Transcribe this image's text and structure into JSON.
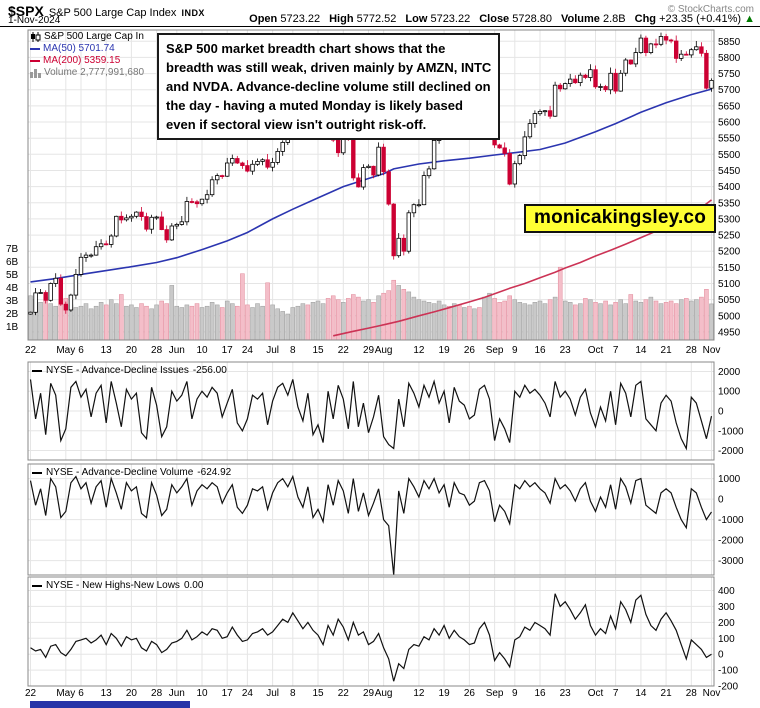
{
  "header": {
    "symbol": "$SPX",
    "name": "S&P 500 Large Cap Index",
    "exchange": "INDX",
    "source": "© StockCharts.com",
    "date": "1-Nov-2024",
    "quote": {
      "open_label": "Open",
      "open": "5723.22",
      "high_label": "High",
      "high": "5772.52",
      "low_label": "Low",
      "low": "5723.22",
      "close_label": "Close",
      "close": "5728.80",
      "volume_label": "Volume",
      "volume": "2.8B",
      "chg_label": "Chg",
      "chg": "+23.35 (+0.41%)",
      "chg_arrow": "▲"
    }
  },
  "main_legend": {
    "title": "S&P 500 Large Cap In",
    "ma50": "MA(50) 5701.74",
    "ma200": "MA(200) 5359.15",
    "volume": "Volume 2,777,991,680"
  },
  "annotation": {
    "lines": [
      "S&P 500 market breadth chart shows that the",
      "breadth was still weak, driven mainly by AMZN, INTC",
      "and NVDA. Advance-decline volume still declined on",
      "the day - having a muted Monday is likely based",
      "even if sectoral view isn't outright risk-off."
    ]
  },
  "watermark": "monicakingsley.co",
  "colors": {
    "up_fill": "#ffffff",
    "up_stroke": "#000000",
    "down": "#cc0033",
    "ma50": "#2b35b0",
    "ma200": "#cc3355",
    "vol_up": "#c9c9c9",
    "vol_up_edge": "#9a9a9a",
    "vol_down": "#f4bec9",
    "vol_down_edge": "#e08898",
    "badge_bg": "#ffff33",
    "chg_up": "#007a00",
    "panel_line": "#111111"
  },
  "chart_data": [
    {
      "type": "candlestick+volume",
      "title": "S&P 500 Large Cap Index",
      "date_range": "Apr 22 2024 - Nov 1 2024",
      "price_axis_range": [
        4925,
        5885
      ],
      "y_ticks": [
        5850,
        5800,
        5750,
        5700,
        5650,
        5600,
        5550,
        5500,
        5450,
        5400,
        5350,
        5300,
        5250,
        5200,
        5150,
        5100,
        5050,
        5000,
        4950
      ],
      "volume_ticks": [
        "1B",
        "2B",
        "3B",
        "4B",
        "5B",
        "6B",
        "7B"
      ],
      "x_tick_idx": [
        0,
        7,
        10,
        15,
        20,
        25,
        29,
        34,
        39,
        43,
        48,
        52,
        57,
        62,
        67,
        70,
        77,
        82,
        87,
        92,
        96,
        101,
        106,
        112,
        116,
        121,
        126,
        131,
        135
      ],
      "x_tick_labels": [
        "22",
        "May",
        "6",
        "13",
        "20",
        "28",
        "Jun",
        "10",
        "17",
        "24",
        "Jul",
        "8",
        "15",
        "22",
        "29",
        "Aug",
        "12",
        "19",
        "26",
        "Sep",
        "9",
        "16",
        "23",
        "Oct",
        "7",
        "14",
        "21",
        "28",
        "Nov"
      ],
      "open_first": 5005,
      "closes": [
        5011,
        5071,
        5072,
        5048,
        5100,
        5116,
        5036,
        5018,
        5064,
        5128,
        5181,
        5188,
        5188,
        5214,
        5223,
        5221,
        5247,
        5308,
        5297,
        5303,
        5308,
        5321,
        5307,
        5268,
        5305,
        5306,
        5267,
        5235,
        5278,
        5283,
        5291,
        5354,
        5353,
        5347,
        5361,
        5375,
        5421,
        5434,
        5432,
        5473,
        5487,
        5473,
        5465,
        5448,
        5469,
        5478,
        5483,
        5460,
        5475,
        5509,
        5537,
        5567,
        5573,
        5577,
        5634,
        5584,
        5615,
        5631,
        5667,
        5588,
        5544,
        5505,
        5564,
        5556,
        5427,
        5399,
        5459,
        5463,
        5436,
        5522,
        5446,
        5346,
        5186,
        5240,
        5200,
        5319,
        5344,
        5344,
        5434,
        5455,
        5543,
        5554,
        5608,
        5597,
        5621,
        5571,
        5635,
        5617,
        5626,
        5592,
        5592,
        5648,
        5529,
        5520,
        5503,
        5408,
        5471,
        5496,
        5554,
        5595,
        5626,
        5633,
        5635,
        5618,
        5714,
        5703,
        5719,
        5733,
        5722,
        5745,
        5738,
        5762,
        5709,
        5710,
        5700,
        5751,
        5696,
        5751,
        5792,
        5780,
        5815,
        5860,
        5815,
        5842,
        5841,
        5865,
        5854,
        5851,
        5797,
        5810,
        5808,
        5824,
        5833,
        5813,
        5705,
        5729
      ],
      "volumes_b": [
        3.4,
        3.1,
        2.9,
        3.3,
        2.8,
        2.6,
        3.0,
        3.2,
        2.7,
        2.5,
        2.6,
        2.8,
        2.4,
        2.6,
        2.9,
        2.7,
        3.1,
        2.8,
        3.5,
        2.6,
        2.7,
        2.5,
        2.8,
        2.6,
        2.4,
        2.7,
        3.0,
        2.8,
        4.2,
        2.6,
        2.5,
        2.7,
        2.6,
        2.8,
        2.5,
        2.6,
        2.9,
        2.7,
        2.5,
        3.0,
        2.8,
        2.6,
        5.1,
        2.7,
        2.5,
        2.8,
        2.6,
        4.4,
        2.7,
        2.4,
        2.2,
        2.0,
        2.5,
        2.6,
        2.8,
        2.7,
        2.9,
        3.0,
        2.8,
        3.2,
        3.4,
        3.1,
        2.9,
        3.2,
        3.5,
        3.3,
        3.0,
        3.1,
        2.9,
        3.4,
        3.6,
        3.8,
        4.6,
        4.2,
        3.9,
        3.7,
        3.3,
        3.1,
        3.0,
        2.9,
        2.8,
        3.0,
        2.7,
        2.6,
        2.8,
        2.7,
        2.5,
        2.6,
        2.4,
        2.5,
        3.3,
        3.6,
        3.2,
        2.9,
        3.0,
        3.4,
        3.1,
        2.9,
        2.8,
        2.7,
        2.9,
        3.0,
        2.8,
        3.1,
        3.3,
        5.6,
        3.0,
        2.9,
        2.7,
        2.8,
        3.2,
        3.1,
        2.9,
        2.8,
        3.0,
        2.7,
        2.9,
        3.1,
        2.8,
        3.5,
        3.0,
        2.9,
        3.1,
        3.3,
        3.0,
        2.8,
        2.9,
        3.0,
        2.8,
        3.1,
        3.2,
        3.0,
        3.1,
        3.3,
        3.9,
        2.78
      ],
      "ma50": {
        "label": "MA(50)",
        "last": 5701.74,
        "points": [
          [
            0,
            5105
          ],
          [
            5,
            5115
          ],
          [
            10,
            5128
          ],
          [
            15,
            5140
          ],
          [
            20,
            5152
          ],
          [
            25,
            5165
          ],
          [
            29,
            5180
          ],
          [
            34,
            5205
          ],
          [
            39,
            5232
          ],
          [
            43,
            5258
          ],
          [
            48,
            5300
          ],
          [
            52,
            5330
          ],
          [
            57,
            5365
          ],
          [
            62,
            5400
          ],
          [
            67,
            5425
          ],
          [
            70,
            5440
          ],
          [
            72,
            5455
          ],
          [
            77,
            5470
          ],
          [
            82,
            5480
          ],
          [
            87,
            5488
          ],
          [
            92,
            5498
          ],
          [
            96,
            5505
          ],
          [
            101,
            5515
          ],
          [
            106,
            5535
          ],
          [
            112,
            5570
          ],
          [
            116,
            5595
          ],
          [
            121,
            5630
          ],
          [
            126,
            5660
          ],
          [
            131,
            5685
          ],
          [
            135,
            5702
          ]
        ]
      },
      "ma200": {
        "label": "MA(200)",
        "last": 5359.15,
        "points": [
          [
            60,
            4938
          ],
          [
            64,
            4952
          ],
          [
            67,
            4962
          ],
          [
            70,
            4972
          ],
          [
            73,
            4983
          ],
          [
            77,
            5000
          ],
          [
            80,
            5012
          ],
          [
            83,
            5025
          ],
          [
            87,
            5043
          ],
          [
            90,
            5057
          ],
          [
            92,
            5068
          ],
          [
            95,
            5085
          ],
          [
            98,
            5100
          ],
          [
            101,
            5118
          ],
          [
            104,
            5135
          ],
          [
            106,
            5148
          ],
          [
            109,
            5165
          ],
          [
            112,
            5185
          ],
          [
            115,
            5203
          ],
          [
            118,
            5222
          ],
          [
            121,
            5242
          ],
          [
            124,
            5262
          ],
          [
            126,
            5277
          ],
          [
            129,
            5300
          ],
          [
            131,
            5315
          ],
          [
            133,
            5335
          ],
          [
            135,
            5359
          ]
        ]
      },
      "last_volume": 2777991680
    },
    {
      "type": "line",
      "title": "NYSE - Advance-Decline Issues",
      "value": "-256.00",
      "y_ticks": [
        2000,
        1000,
        0,
        -1000,
        -2000
      ],
      "range": [
        -2480,
        2480
      ],
      "values": [
        1600,
        -400,
        900,
        -1200,
        1400,
        800,
        -1500,
        -900,
        1200,
        1500,
        700,
        1100,
        -300,
        900,
        1300,
        -600,
        1500,
        400,
        -800,
        1100,
        600,
        900,
        -1100,
        -1400,
        1200,
        300,
        -1300,
        -800,
        1000,
        500,
        800,
        1500,
        -400,
        600,
        1000,
        700,
        1200,
        900,
        -300,
        400,
        1100,
        -600,
        -1000,
        -400,
        800,
        600,
        900,
        -700,
        500,
        1200,
        1400,
        800,
        1600,
        200,
        -500,
        900,
        -1200,
        -700,
        -1600,
        1000,
        -400,
        1300,
        600,
        -900,
        1500,
        -800,
        400,
        -1100,
        -300,
        800,
        -1300,
        -1700,
        -1900,
        600,
        -800,
        1400,
        900,
        200,
        1300,
        700,
        1500,
        400,
        1000,
        -600,
        1200,
        500,
        300,
        -400,
        -200,
        1100,
        1300,
        600,
        -1500,
        -400,
        -900,
        -1600,
        1000,
        700,
        1300,
        900,
        1100,
        800,
        400,
        -300,
        1500,
        700,
        1000,
        600,
        -200,
        700,
        1100,
        -100,
        -800,
        200,
        -500,
        1000,
        -700,
        1400,
        900,
        -300,
        1300,
        1500,
        -400,
        -700,
        -1000,
        400,
        800,
        500,
        -600,
        -1400,
        -1900,
        700,
        400,
        -500,
        -1400,
        -256
      ]
    },
    {
      "type": "line",
      "title": "NYSE - Advance-Decline Volume",
      "value": "-624.92",
      "y_ticks": [
        1000,
        0,
        -1000,
        -2000,
        -3000
      ],
      "range": [
        -3700,
        1710
      ],
      "values": [
        900,
        -300,
        500,
        -800,
        1000,
        600,
        -900,
        -600,
        800,
        1100,
        500,
        800,
        -200,
        600,
        900,
        -400,
        1000,
        300,
        -500,
        800,
        400,
        600,
        -700,
        -900,
        800,
        200,
        -800,
        -500,
        700,
        300,
        600,
        1000,
        -300,
        400,
        700,
        500,
        800,
        600,
        -200,
        300,
        700,
        -400,
        -700,
        -300,
        500,
        400,
        600,
        -500,
        300,
        800,
        1000,
        600,
        1100,
        100,
        -400,
        600,
        -900,
        -500,
        -1100,
        700,
        -300,
        900,
        400,
        -700,
        1000,
        -600,
        300,
        -800,
        -200,
        500,
        -1000,
        -1300,
        -3900,
        400,
        -700,
        1000,
        600,
        100,
        900,
        500,
        1000,
        300,
        700,
        -400,
        800,
        300,
        200,
        -300,
        -100,
        800,
        900,
        400,
        -1100,
        -300,
        -600,
        -1200,
        700,
        500,
        900,
        600,
        800,
        500,
        300,
        -200,
        1000,
        500,
        700,
        400,
        -100,
        500,
        800,
        -100,
        -600,
        100,
        -400,
        700,
        -500,
        1000,
        600,
        -200,
        900,
        1000,
        -300,
        -500,
        -700,
        300,
        500,
        300,
        -400,
        -1000,
        -1400,
        500,
        300,
        -400,
        -1000,
        -625
      ]
    },
    {
      "type": "line",
      "title": "NYSE - New Highs-New Lows",
      "value": "0.00",
      "y_ticks": [
        400,
        300,
        200,
        100,
        0,
        -100,
        -200
      ],
      "range": [
        -200,
        485
      ],
      "values": [
        40,
        20,
        30,
        -20,
        50,
        60,
        10,
        -10,
        30,
        80,
        90,
        100,
        70,
        90,
        120,
        60,
        130,
        100,
        50,
        110,
        90,
        100,
        40,
        20,
        80,
        60,
        10,
        30,
        70,
        80,
        100,
        150,
        90,
        110,
        140,
        120,
        160,
        150,
        100,
        110,
        170,
        120,
        80,
        90,
        130,
        140,
        160,
        120,
        140,
        180,
        220,
        200,
        260,
        210,
        160,
        200,
        150,
        120,
        60,
        180,
        120,
        220,
        170,
        90,
        200,
        120,
        140,
        60,
        80,
        130,
        40,
        -30,
        -170,
        -60,
        -90,
        30,
        60,
        50,
        110,
        90,
        160,
        120,
        180,
        100,
        150,
        110,
        90,
        60,
        70,
        160,
        200,
        120,
        -40,
        10,
        -30,
        -80,
        90,
        110,
        170,
        150,
        200,
        180,
        160,
        120,
        380,
        300,
        330,
        280,
        220,
        260,
        310,
        180,
        120,
        160,
        130,
        240,
        160,
        330,
        280,
        200,
        340,
        370,
        250,
        180,
        150,
        220,
        260,
        210,
        150,
        60,
        -30,
        90,
        60,
        30,
        -20,
        0
      ]
    }
  ]
}
